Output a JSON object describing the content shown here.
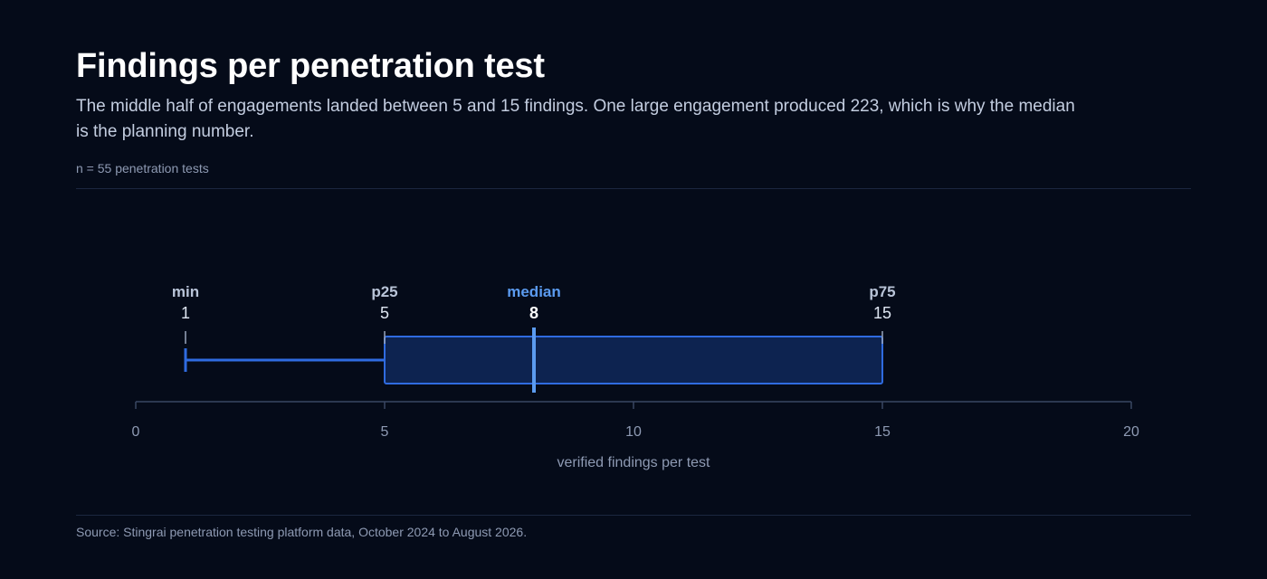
{
  "header": {
    "title": "Findings per penetration test",
    "subtitle": "The middle half of engagements landed between 5 and 15 findings. One large engagement produced 223, which is why the median is the planning number.",
    "note": "n = 55 penetration tests"
  },
  "footer": {
    "source": "Source: Stingrai penetration testing platform data, October 2024 to August 2026."
  },
  "colors": {
    "background": "#050b19",
    "box_fill": "#0d2350",
    "box_stroke": "#2f6be0",
    "median": "#5b9bf0",
    "axis": "#3a4763",
    "muted_text": "#8e9ab3",
    "stat_label": "#b9c4d8"
  },
  "chart_data": {
    "type": "box",
    "xlabel": "verified findings per test",
    "xlim": [
      0,
      20
    ],
    "x_ticks": [
      0,
      5,
      10,
      15,
      20
    ],
    "stats": [
      {
        "key": "min",
        "label": "min",
        "value": 1
      },
      {
        "key": "p25",
        "label": "p25",
        "value": 5
      },
      {
        "key": "median",
        "label": "median",
        "value": 8
      },
      {
        "key": "p75",
        "label": "p75",
        "value": 15
      }
    ],
    "grid": false,
    "legend": "none"
  }
}
